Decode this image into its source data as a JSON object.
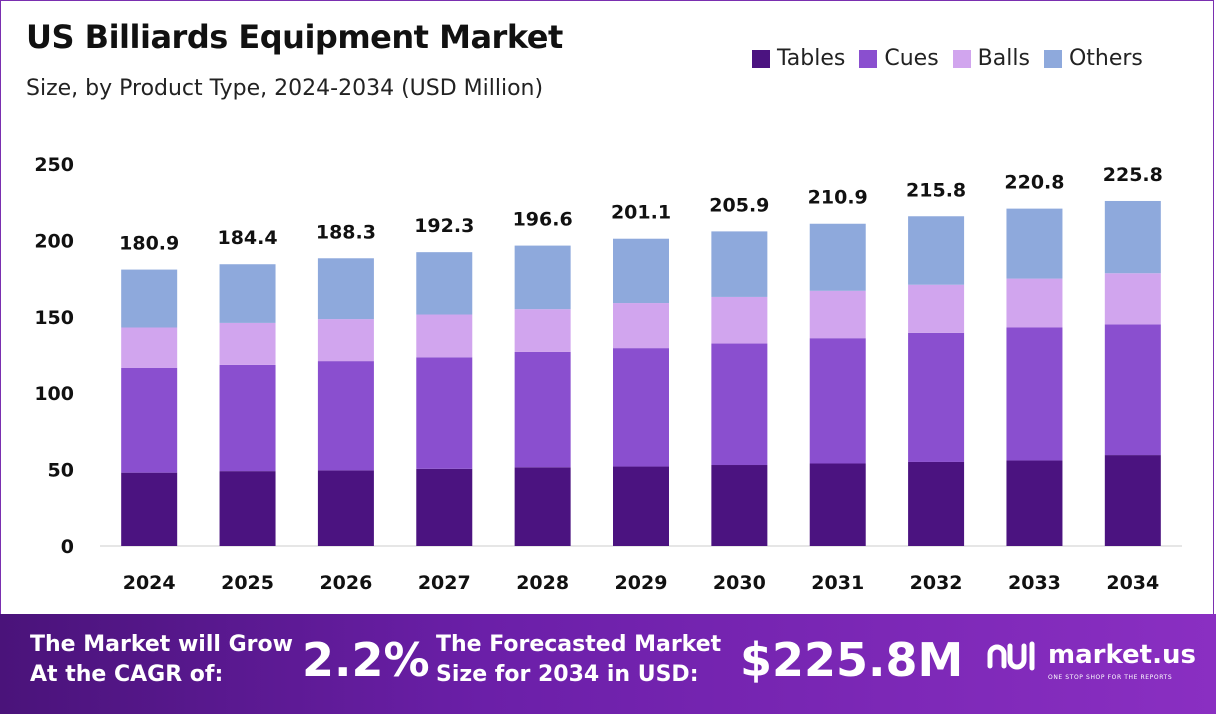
{
  "header": {
    "title": "US Billiards Equipment Market",
    "subtitle": "Size, by Product Type, 2024-2034 (USD Million)"
  },
  "chart_data": {
    "type": "bar",
    "stacked": true,
    "categories": [
      "2024",
      "2025",
      "2026",
      "2027",
      "2028",
      "2029",
      "2030",
      "2031",
      "2032",
      "2033",
      "2034"
    ],
    "series": [
      {
        "name": "Tables",
        "color": "#4b1380",
        "values": [
          48,
          49,
          49.5,
          50.5,
          51.5,
          52,
          53,
          54,
          55,
          56,
          59.5
        ]
      },
      {
        "name": "Cues",
        "color": "#8a4fcf",
        "values": [
          68.5,
          69.5,
          71.5,
          73,
          75.5,
          77.5,
          79.5,
          82,
          84.5,
          87,
          85.5
        ]
      },
      {
        "name": "Balls",
        "color": "#d1a5ee",
        "values": [
          26.5,
          27.5,
          27.5,
          28,
          28,
          29.5,
          30.5,
          31,
          31.5,
          32,
          33.5
        ]
      },
      {
        "name": "Others",
        "color": "#8ea9dc",
        "values": [
          37.9,
          38.4,
          39.8,
          40.8,
          41.6,
          42.1,
          42.9,
          43.9,
          44.8,
          45.8,
          47.3
        ]
      }
    ],
    "totals": [
      "180.9",
      "184.4",
      "188.3",
      "192.3",
      "196.6",
      "201.1",
      "205.9",
      "210.9",
      "215.8",
      "220.8",
      "225.8"
    ],
    "y_ticks": [
      "0",
      "50",
      "100",
      "150",
      "200",
      "250"
    ],
    "ylim": [
      0,
      250
    ],
    "grid": false,
    "legend": "top-right"
  },
  "footer": {
    "cagr_label_line1": "The Market will Grow",
    "cagr_label_line2": "At the CAGR of:",
    "cagr_value": "2.2%",
    "forecast_label_line1": "The Forecasted Market",
    "forecast_label_line2": "Size for 2034 in USD:",
    "forecast_value": "$225.8M",
    "brand_name": "market.us",
    "brand_tagline": "ONE STOP SHOP FOR THE REPORTS",
    "brand_icon": "market-us-logo-icon"
  }
}
